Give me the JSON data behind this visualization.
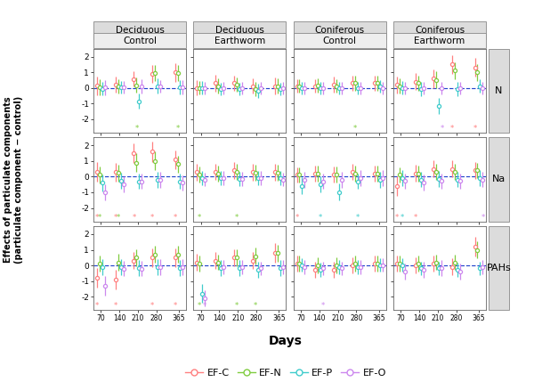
{
  "days": [
    70,
    140,
    210,
    280,
    365
  ],
  "colors": {
    "EF-C": "#FF8080",
    "EF-N": "#80CC40",
    "EF-P": "#40CCCC",
    "EF-O": "#CC88EE"
  },
  "col_tops": [
    "Deciduous",
    "Deciduous",
    "Coniferous",
    "Coniferous"
  ],
  "col_mids": [
    "Control",
    "Earthworm",
    "Control",
    "Earthworm"
  ],
  "col_keys": [
    "Deciduous_Control",
    "Deciduous_Earthworm",
    "Coniferous_Control",
    "Coniferous_Earthworm"
  ],
  "row_labels": [
    "N",
    "Na",
    "PAHs"
  ],
  "series_names": [
    "EF-C",
    "EF-N",
    "EF-P",
    "EF-O"
  ],
  "x_offsets": {
    "EF-C": -15,
    "EF-N": -5,
    "EF-P": 5,
    "EF-O": 15
  },
  "ylabel_line1": "Effects of particulate components",
  "ylabel_line2": "(particulate component − control)",
  "xlabel": "Days",
  "ylim": [
    -2.85,
    2.5
  ],
  "xlim": [
    42,
    392
  ],
  "yticks": [
    -2,
    -1,
    0,
    1,
    2
  ],
  "ystar": -2.6,
  "panels": {
    "N": {
      "Deciduous_Control": {
        "EF-C": {
          "means": [
            0.15,
            0.22,
            0.58,
            0.88,
            0.98
          ],
          "errs": [
            0.6,
            0.5,
            0.5,
            0.56,
            0.6
          ]
        },
        "EF-N": {
          "means": [
            0.05,
            0.1,
            0.18,
            0.95,
            0.95
          ],
          "errs": [
            0.5,
            0.44,
            0.5,
            0.54,
            0.5
          ]
        },
        "EF-P": {
          "means": [
            -0.05,
            0.02,
            -0.85,
            0.12,
            0.05
          ],
          "errs": [
            0.44,
            0.4,
            0.5,
            0.5,
            0.44
          ]
        },
        "EF-O": {
          "means": [
            0.02,
            0.02,
            0.1,
            0.1,
            0.05
          ],
          "errs": [
            0.5,
            0.4,
            0.44,
            0.4,
            0.44
          ]
        },
        "sig": {
          "EF-C": [
            0,
            0,
            0,
            0,
            0
          ],
          "EF-N": [
            0,
            0,
            1,
            0,
            1
          ],
          "EF-P": [
            0,
            0,
            0,
            0,
            0
          ],
          "EF-O": [
            0,
            0,
            0,
            0,
            0
          ]
        }
      },
      "Deciduous_Earthworm": {
        "EF-C": {
          "means": [
            0.0,
            0.3,
            0.3,
            0.12,
            0.12
          ],
          "errs": [
            0.5,
            0.54,
            0.5,
            0.5,
            0.54
          ]
        },
        "EF-N": {
          "means": [
            0.0,
            0.12,
            0.2,
            -0.08,
            0.12
          ],
          "errs": [
            0.44,
            0.5,
            0.44,
            0.44,
            0.5
          ]
        },
        "EF-P": {
          "means": [
            0.0,
            -0.1,
            -0.1,
            -0.2,
            -0.1
          ],
          "errs": [
            0.44,
            0.4,
            0.4,
            0.44,
            0.4
          ]
        },
        "EF-O": {
          "means": [
            0.0,
            0.0,
            0.0,
            0.0,
            0.0
          ],
          "errs": [
            0.4,
            0.4,
            0.4,
            0.4,
            0.4
          ]
        },
        "sig": {
          "EF-C": [
            0,
            0,
            0,
            0,
            0
          ],
          "EF-N": [
            0,
            0,
            0,
            0,
            0
          ],
          "EF-P": [
            0,
            0,
            0,
            0,
            0
          ],
          "EF-O": [
            0,
            0,
            0,
            0,
            0
          ]
        }
      },
      "Coniferous_Control": {
        "EF-C": {
          "means": [
            0.12,
            0.12,
            0.2,
            0.3,
            0.3
          ],
          "errs": [
            0.44,
            0.44,
            0.5,
            0.5,
            0.5
          ]
        },
        "EF-N": {
          "means": [
            0.12,
            0.15,
            0.12,
            0.3,
            0.3
          ],
          "errs": [
            0.44,
            0.44,
            0.44,
            0.5,
            0.5
          ]
        },
        "EF-P": {
          "means": [
            0.0,
            0.0,
            0.0,
            0.0,
            0.1
          ],
          "errs": [
            0.4,
            0.4,
            0.4,
            0.4,
            0.4
          ]
        },
        "EF-O": {
          "means": [
            0.0,
            0.0,
            0.0,
            0.0,
            0.0
          ],
          "errs": [
            0.4,
            0.4,
            0.4,
            0.4,
            0.4
          ]
        },
        "sig": {
          "EF-C": [
            0,
            0,
            0,
            0,
            0
          ],
          "EF-N": [
            0,
            0,
            0,
            1,
            0
          ],
          "EF-P": [
            0,
            0,
            0,
            0,
            0
          ],
          "EF-O": [
            0,
            0,
            0,
            0,
            0
          ]
        }
      },
      "Coniferous_Earthworm": {
        "EF-C": {
          "means": [
            0.2,
            0.4,
            0.6,
            1.5,
            1.3
          ],
          "errs": [
            0.54,
            0.54,
            0.6,
            0.6,
            0.6
          ]
        },
        "EF-N": {
          "means": [
            0.12,
            0.3,
            0.5,
            1.1,
            1.0
          ],
          "errs": [
            0.5,
            0.5,
            0.54,
            0.54,
            0.54
          ]
        },
        "EF-P": {
          "means": [
            0.0,
            -0.08,
            -1.15,
            -0.08,
            0.12
          ],
          "errs": [
            0.44,
            0.44,
            0.5,
            0.44,
            0.44
          ]
        },
        "EF-O": {
          "means": [
            0.0,
            0.0,
            0.0,
            0.0,
            0.0
          ],
          "errs": [
            0.4,
            0.4,
            0.4,
            0.4,
            0.4
          ]
        },
        "sig": {
          "EF-C": [
            0,
            0,
            0,
            1,
            1
          ],
          "EF-N": [
            0,
            0,
            0,
            0,
            0
          ],
          "EF-P": [
            0,
            0,
            0,
            0,
            0
          ],
          "EF-O": [
            0,
            0,
            1,
            0,
            0
          ]
        }
      }
    },
    "Na": {
      "Deciduous_Control": {
        "EF-C": {
          "means": [
            0.3,
            0.3,
            1.5,
            1.6,
            1.1
          ],
          "errs": [
            0.64,
            0.6,
            0.64,
            0.64,
            0.6
          ]
        },
        "EF-N": {
          "means": [
            0.12,
            0.25,
            0.9,
            1.0,
            0.8
          ],
          "errs": [
            0.54,
            0.54,
            0.6,
            0.6,
            0.54
          ]
        },
        "EF-P": {
          "means": [
            -0.4,
            -0.25,
            -0.3,
            -0.2,
            -0.3
          ],
          "errs": [
            0.54,
            0.5,
            0.5,
            0.5,
            0.5
          ]
        },
        "EF-O": {
          "means": [
            -1.0,
            -0.5,
            -0.3,
            -0.2,
            -0.4
          ],
          "errs": [
            0.5,
            0.5,
            0.5,
            0.5,
            0.5
          ]
        },
        "sig": {
          "EF-C": [
            1,
            1,
            1,
            1,
            1
          ],
          "EF-N": [
            1,
            1,
            0,
            0,
            0
          ],
          "EF-P": [
            0,
            0,
            0,
            0,
            0
          ],
          "EF-O": [
            0,
            0,
            0,
            0,
            0
          ]
        }
      },
      "Deciduous_Earthworm": {
        "EF-C": {
          "means": [
            0.3,
            0.3,
            0.4,
            0.3,
            0.3
          ],
          "errs": [
            0.54,
            0.5,
            0.54,
            0.54,
            0.54
          ]
        },
        "EF-N": {
          "means": [
            0.15,
            0.2,
            0.3,
            0.25,
            0.25
          ],
          "errs": [
            0.5,
            0.5,
            0.5,
            0.5,
            0.5
          ]
        },
        "EF-P": {
          "means": [
            -0.1,
            -0.1,
            -0.15,
            -0.1,
            -0.1
          ],
          "errs": [
            0.44,
            0.44,
            0.44,
            0.44,
            0.44
          ]
        },
        "EF-O": {
          "means": [
            -0.18,
            -0.1,
            -0.15,
            -0.1,
            -0.18
          ],
          "errs": [
            0.44,
            0.44,
            0.44,
            0.44,
            0.44
          ]
        },
        "sig": {
          "EF-C": [
            0,
            0,
            0,
            0,
            0
          ],
          "EF-N": [
            1,
            0,
            1,
            0,
            0
          ],
          "EF-P": [
            0,
            0,
            0,
            0,
            0
          ],
          "EF-O": [
            0,
            0,
            0,
            0,
            0
          ]
        }
      },
      "Coniferous_Control": {
        "EF-C": {
          "means": [
            0.12,
            0.2,
            0.15,
            0.3,
            0.2
          ],
          "errs": [
            0.5,
            0.5,
            0.5,
            0.5,
            0.5
          ]
        },
        "EF-N": {
          "means": [
            0.12,
            0.2,
            0.15,
            0.2,
            0.2
          ],
          "errs": [
            0.5,
            0.5,
            0.5,
            0.5,
            0.5
          ]
        },
        "EF-P": {
          "means": [
            -0.6,
            -0.5,
            -1.0,
            -0.3,
            -0.2
          ],
          "errs": [
            0.54,
            0.5,
            0.54,
            0.5,
            0.5
          ]
        },
        "EF-O": {
          "means": [
            -0.2,
            -0.3,
            -0.2,
            -0.1,
            -0.1
          ],
          "errs": [
            0.5,
            0.5,
            0.5,
            0.5,
            0.5
          ]
        },
        "sig": {
          "EF-C": [
            1,
            0,
            0,
            0,
            0
          ],
          "EF-N": [
            0,
            0,
            0,
            0,
            0
          ],
          "EF-P": [
            0,
            1,
            0,
            1,
            0
          ],
          "EF-O": [
            0,
            0,
            0,
            0,
            0
          ]
        }
      },
      "Coniferous_Earthworm": {
        "EF-C": {
          "means": [
            -0.6,
            0.2,
            0.5,
            0.5,
            0.4
          ],
          "errs": [
            0.6,
            0.54,
            0.54,
            0.54,
            0.54
          ]
        },
        "EF-N": {
          "means": [
            0.12,
            0.2,
            0.3,
            0.3,
            0.4
          ],
          "errs": [
            0.5,
            0.5,
            0.5,
            0.5,
            0.5
          ]
        },
        "EF-P": {
          "means": [
            -0.1,
            -0.18,
            -0.14,
            -0.18,
            -0.1
          ],
          "errs": [
            0.5,
            0.5,
            0.5,
            0.5,
            0.5
          ]
        },
        "EF-O": {
          "means": [
            -0.28,
            -0.38,
            -0.28,
            -0.28,
            -0.18
          ],
          "errs": [
            0.5,
            0.5,
            0.5,
            0.5,
            0.5
          ]
        },
        "sig": {
          "EF-C": [
            1,
            1,
            0,
            0,
            0
          ],
          "EF-N": [
            0,
            0,
            0,
            0,
            0
          ],
          "EF-P": [
            1,
            0,
            0,
            0,
            0
          ],
          "EF-O": [
            0,
            0,
            0,
            0,
            1
          ]
        }
      }
    },
    "PAHs": {
      "Deciduous_Control": {
        "EF-C": {
          "means": [
            -0.8,
            -0.9,
            0.3,
            0.5,
            0.5
          ],
          "errs": [
            0.64,
            0.64,
            0.54,
            0.6,
            0.6
          ]
        },
        "EF-N": {
          "means": [
            0.12,
            0.2,
            0.5,
            0.7,
            0.7
          ],
          "errs": [
            0.54,
            0.54,
            0.54,
            0.54,
            0.54
          ]
        },
        "EF-P": {
          "means": [
            -0.1,
            -0.1,
            -0.18,
            -0.1,
            -0.18
          ],
          "errs": [
            0.5,
            0.5,
            0.5,
            0.5,
            0.5
          ]
        },
        "EF-O": {
          "means": [
            -1.3,
            -0.2,
            -0.2,
            -0.1,
            -0.1
          ],
          "errs": [
            0.6,
            0.5,
            0.5,
            0.5,
            0.5
          ]
        },
        "sig": {
          "EF-C": [
            1,
            1,
            0,
            1,
            1
          ],
          "EF-N": [
            0,
            0,
            0,
            0,
            0
          ],
          "EF-P": [
            0,
            0,
            0,
            0,
            0
          ],
          "EF-O": [
            0,
            0,
            0,
            0,
            0
          ]
        }
      },
      "Deciduous_Earthworm": {
        "EF-C": {
          "means": [
            0.2,
            0.3,
            0.5,
            0.3,
            0.8
          ],
          "errs": [
            0.54,
            0.54,
            0.54,
            0.54,
            0.6
          ]
        },
        "EF-N": {
          "means": [
            0.12,
            0.2,
            0.5,
            0.6,
            0.8
          ],
          "errs": [
            0.5,
            0.5,
            0.54,
            0.54,
            0.54
          ]
        },
        "EF-P": {
          "means": [
            -1.8,
            -0.18,
            -0.18,
            -0.28,
            -0.18
          ],
          "errs": [
            0.6,
            0.5,
            0.5,
            0.5,
            0.5
          ]
        },
        "EF-O": {
          "means": [
            -2.1,
            -0.1,
            -0.1,
            -0.18,
            -0.1
          ],
          "errs": [
            0.5,
            0.44,
            0.44,
            0.44,
            0.44
          ]
        },
        "sig": {
          "EF-C": [
            0,
            0,
            0,
            0,
            0
          ],
          "EF-N": [
            1,
            0,
            1,
            1,
            0
          ],
          "EF-P": [
            0,
            0,
            0,
            0,
            0
          ],
          "EF-O": [
            1,
            0,
            0,
            0,
            0
          ]
        }
      },
      "Coniferous_Control": {
        "EF-C": {
          "means": [
            0.12,
            -0.28,
            -0.28,
            0.02,
            0.12
          ],
          "errs": [
            0.5,
            0.5,
            0.5,
            0.5,
            0.5
          ]
        },
        "EF-N": {
          "means": [
            0.12,
            0.02,
            0.02,
            0.12,
            0.12
          ],
          "errs": [
            0.5,
            0.5,
            0.5,
            0.5,
            0.5
          ]
        },
        "EF-P": {
          "means": [
            0.02,
            -0.28,
            -0.1,
            -0.1,
            0.02
          ],
          "errs": [
            0.44,
            0.44,
            0.44,
            0.44,
            0.44
          ]
        },
        "EF-O": {
          "means": [
            -0.1,
            -0.18,
            -0.18,
            -0.1,
            0.02
          ],
          "errs": [
            0.44,
            0.44,
            0.44,
            0.44,
            0.44
          ]
        },
        "sig": {
          "EF-C": [
            0,
            0,
            0,
            0,
            0
          ],
          "EF-N": [
            0,
            0,
            0,
            0,
            0
          ],
          "EF-P": [
            0,
            0,
            0,
            0,
            0
          ],
          "EF-O": [
            0,
            1,
            0,
            0,
            0
          ]
        }
      },
      "Coniferous_Earthworm": {
        "EF-C": {
          "means": [
            0.12,
            0.02,
            0.12,
            -0.08,
            1.2
          ],
          "errs": [
            0.5,
            0.5,
            0.5,
            0.54,
            0.6
          ]
        },
        "EF-N": {
          "means": [
            0.12,
            0.12,
            0.2,
            0.2,
            1.0
          ],
          "errs": [
            0.5,
            0.5,
            0.5,
            0.5,
            0.54
          ]
        },
        "EF-P": {
          "means": [
            0.02,
            -0.18,
            -0.18,
            -0.28,
            -0.18
          ],
          "errs": [
            0.44,
            0.44,
            0.44,
            0.44,
            0.44
          ]
        },
        "EF-O": {
          "means": [
            -0.38,
            -0.28,
            -0.18,
            -0.38,
            -0.1
          ],
          "errs": [
            0.5,
            0.5,
            0.5,
            0.5,
            0.44
          ]
        },
        "sig": {
          "EF-C": [
            0,
            0,
            0,
            0,
            0
          ],
          "EF-N": [
            0,
            0,
            0,
            0,
            0
          ],
          "EF-P": [
            0,
            0,
            0,
            0,
            0
          ],
          "EF-O": [
            0,
            0,
            0,
            0,
            0
          ]
        }
      }
    }
  }
}
